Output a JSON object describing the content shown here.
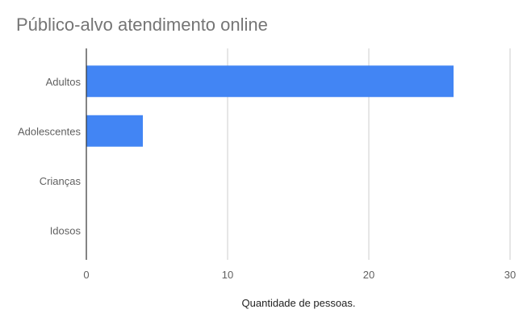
{
  "chart_data": {
    "type": "bar",
    "orientation": "horizontal",
    "title": "Público-alvo atendimento online",
    "categories": [
      "Adultos",
      "Adolescentes",
      "Crianças",
      "Idosos"
    ],
    "values": [
      26,
      4,
      0,
      0
    ],
    "xlabel": "Quantidade de pessoas.",
    "ylabel": "",
    "xlim": [
      0,
      30
    ],
    "xticks": [
      0,
      10,
      20,
      30
    ],
    "grid": true,
    "legend": "none",
    "bar_color": "#4285f4"
  }
}
